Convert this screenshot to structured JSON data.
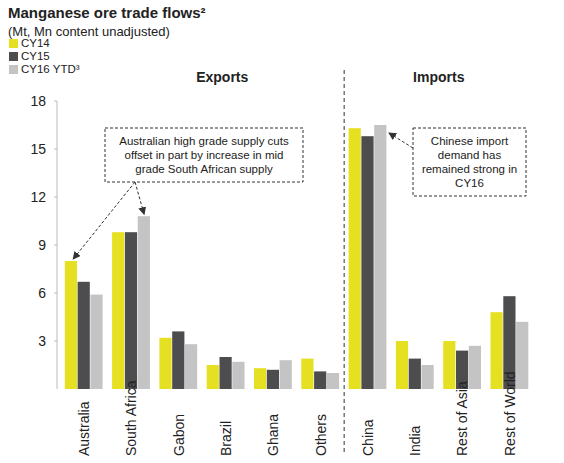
{
  "chart_data": {
    "type": "bar",
    "title": "Manganese ore trade flows²",
    "subtitle": "(Mt, Mn content unadjusted)",
    "categories": [
      "Australia",
      "South Africa",
      "Gabon",
      "Brazil",
      "Ghana",
      "Others",
      "China",
      "India",
      "Rest of Asia",
      "Rest of World"
    ],
    "series": [
      {
        "name": "CY14",
        "color": "#e6e022",
        "values": [
          8.0,
          9.8,
          3.2,
          1.5,
          1.3,
          1.9,
          16.3,
          3.0,
          3.0,
          4.8
        ]
      },
      {
        "name": "CY15",
        "color": "#4d4d4f",
        "values": [
          6.7,
          9.8,
          3.6,
          2.0,
          1.2,
          1.1,
          15.8,
          1.9,
          2.4,
          5.8
        ]
      },
      {
        "name": "CY16 YTD³",
        "color": "#c4c4c4",
        "values": [
          5.9,
          10.8,
          2.8,
          1.7,
          1.8,
          1.0,
          16.5,
          1.5,
          2.7,
          4.2
        ]
      }
    ],
    "section_labels": [
      "Exports",
      "Imports"
    ],
    "annotations": [
      {
        "text": "Australian high grade supply cuts offset in part by increase in mid grade South African supply"
      },
      {
        "text": "Chinese import demand has remained strong in CY16"
      }
    ],
    "ylim": [
      0,
      18
    ],
    "yticks": [
      3,
      6,
      9,
      12,
      15,
      18
    ],
    "grid": false,
    "legend": "upper left"
  }
}
